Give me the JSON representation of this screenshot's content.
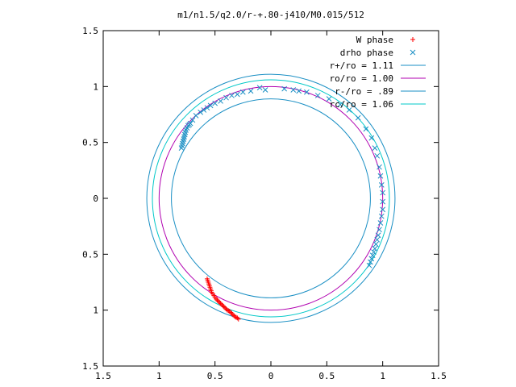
{
  "chart_data": {
    "type": "scatter",
    "title": "m1/n1.5/q2.0/r-+.80-j410/M0.015/512",
    "xlim": [
      -1.5,
      1.5
    ],
    "ylim": [
      -1.5,
      1.5
    ],
    "grid": false,
    "legend_position": "top-right",
    "x_ticks": [
      -1.5,
      -1,
      -0.5,
      0,
      0.5,
      1,
      1.5
    ],
    "y_ticks": [
      -1.5,
      -1,
      -0.5,
      0,
      0.5,
      1,
      1.5
    ],
    "x_tick_labels": [
      "1.5",
      "1",
      "0.5",
      "0",
      "0.5",
      "1",
      "1.5"
    ],
    "y_tick_labels": [
      "1.5",
      "1",
      "0.5",
      "0",
      "0.5",
      "1",
      "1.5"
    ],
    "circles": [
      {
        "name": "r+/ro = 1.11",
        "radius": 1.11,
        "color": "#1a8fc4"
      },
      {
        "name": "ro/ro = 1.00",
        "radius": 1.0,
        "color": "#b000b0"
      },
      {
        "name": "r-/ro = .89",
        "radius": 0.89,
        "color": "#1a8fc4"
      },
      {
        "name": "rc/ro = 1.06",
        "radius": 1.06,
        "color": "#00c8c8"
      }
    ],
    "series": [
      {
        "name": "W phase",
        "marker": "plus",
        "color": "#ff0000",
        "x": [
          -0.57,
          -0.565,
          -0.56,
          -0.555,
          -0.55,
          -0.545,
          -0.54,
          -0.535,
          -0.53,
          -0.52,
          -0.51,
          -0.5,
          -0.49,
          -0.48,
          -0.47,
          -0.46,
          -0.45,
          -0.44,
          -0.43,
          -0.42,
          -0.41,
          -0.4,
          -0.39,
          -0.38,
          -0.37,
          -0.36,
          -0.35,
          -0.34,
          -0.33,
          -0.32,
          -0.31,
          -0.3,
          -0.29
        ],
        "y": [
          -0.72,
          -0.735,
          -0.75,
          -0.765,
          -0.78,
          -0.795,
          -0.81,
          -0.825,
          -0.84,
          -0.855,
          -0.87,
          -0.885,
          -0.9,
          -0.91,
          -0.92,
          -0.93,
          -0.94,
          -0.95,
          -0.96,
          -0.97,
          -0.98,
          -0.99,
          -1.0,
          -1.005,
          -1.01,
          -1.02,
          -1.03,
          -1.04,
          -1.05,
          -1.06,
          -1.065,
          -1.07,
          -1.08
        ]
      },
      {
        "name": "drho phase",
        "marker": "cross",
        "color": "#1a8fc4",
        "x": [
          -0.8,
          -0.795,
          -0.79,
          -0.785,
          -0.78,
          -0.775,
          -0.77,
          -0.765,
          -0.76,
          -0.75,
          -0.74,
          -0.73,
          -0.72,
          -0.7,
          -0.67,
          -0.63,
          -0.6,
          -0.57,
          -0.54,
          -0.5,
          -0.45,
          -0.4,
          -0.35,
          -0.3,
          -0.25,
          -0.18,
          -0.1,
          -0.05,
          0.12,
          0.2,
          0.25,
          0.32,
          0.42,
          0.52,
          0.62,
          0.7,
          0.78,
          0.85,
          0.9,
          0.93,
          0.95,
          0.97,
          0.98,
          0.99,
          1.0,
          1.0,
          1.0,
          0.99,
          0.98,
          0.97,
          0.96,
          0.95,
          0.94,
          0.93,
          0.92,
          0.91,
          0.9,
          0.89,
          0.88
        ],
        "y": [
          0.45,
          0.47,
          0.49,
          0.51,
          0.53,
          0.55,
          0.57,
          0.59,
          0.61,
          0.63,
          0.65,
          0.66,
          0.67,
          0.7,
          0.74,
          0.77,
          0.79,
          0.81,
          0.83,
          0.85,
          0.87,
          0.9,
          0.92,
          0.93,
          0.95,
          0.96,
          0.99,
          0.97,
          0.98,
          0.97,
          0.96,
          0.95,
          0.92,
          0.89,
          0.84,
          0.79,
          0.72,
          0.62,
          0.54,
          0.45,
          0.38,
          0.28,
          0.2,
          0.12,
          0.05,
          -0.03,
          -0.1,
          -0.16,
          -0.22,
          -0.28,
          -0.33,
          -0.37,
          -0.41,
          -0.45,
          -0.48,
          -0.51,
          -0.54,
          -0.57,
          -0.6
        ]
      }
    ]
  }
}
